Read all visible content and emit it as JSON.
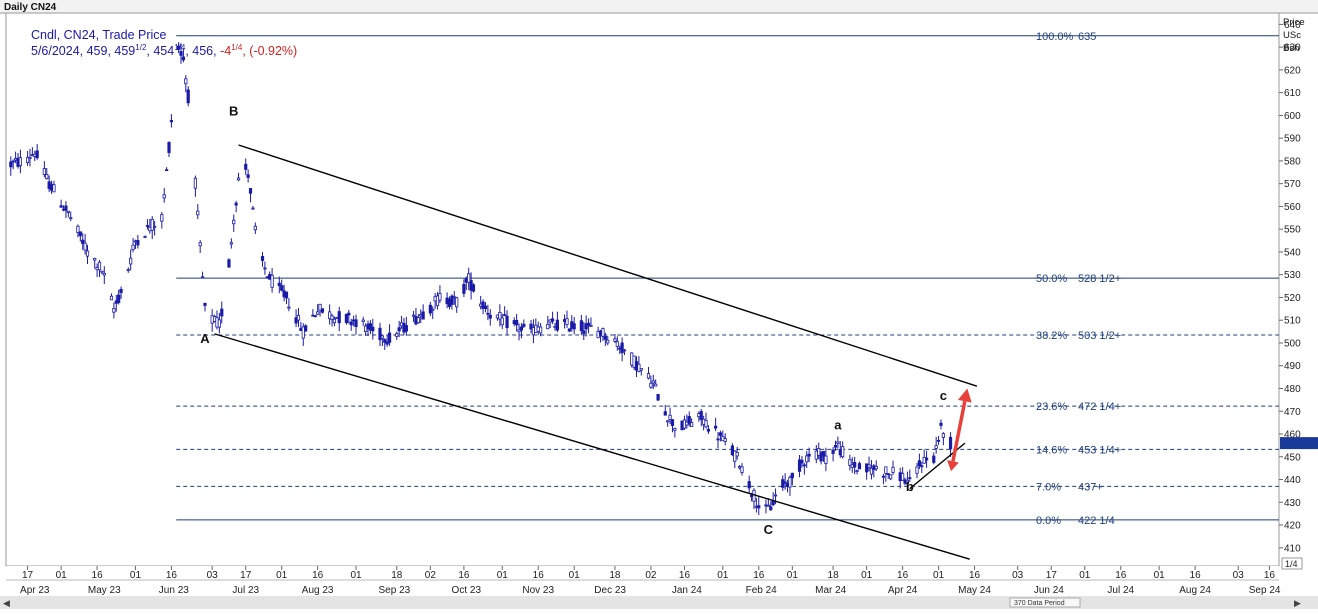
{
  "chart_title": "Daily CN24",
  "legend": {
    "line1": "Cndl, CN24, Trade Price",
    "line2_prefix": "5/6/2024, 459, 459",
    "line2_sup1": "1/2",
    "line2_mid": ", 454",
    "line2_sup2": "1/4",
    "line2_mid2": ", 456, ",
    "change": "-4",
    "change_sup": "1/4",
    "change_sep": ", ",
    "change_pct": "(-0.92%)"
  },
  "axis_header": [
    "Price",
    "USc",
    "Bsh"
  ],
  "current_price_marker": "456",
  "corner_label": "1/4",
  "data_period_label": "370 Data Period",
  "colors": {
    "candle": "#1a1aa8",
    "fib_line": "#1f3f7a",
    "channel": "#000000",
    "arrow": "#e8413a",
    "price_marker": "#1a3a9a",
    "change_text": "#d62020"
  },
  "chart_data": {
    "type": "candlestick",
    "title": "Daily CN24",
    "ylabel": "Price USc Bsh",
    "ylim": [
      402,
      645
    ],
    "x_day_range": [
      "2023-04-08",
      "2024-09-20"
    ],
    "yticks": [
      410,
      420,
      430,
      440,
      450,
      460,
      470,
      480,
      490,
      500,
      510,
      520,
      530,
      540,
      550,
      560,
      570,
      580,
      590,
      600,
      610,
      620,
      630,
      640
    ],
    "xticks_top": [
      {
        "d": "2023-04-17",
        "l": "17"
      },
      {
        "d": "2023-05-01",
        "l": "01"
      },
      {
        "d": "2023-05-16",
        "l": "16"
      },
      {
        "d": "2023-06-01",
        "l": "01"
      },
      {
        "d": "2023-06-16",
        "l": "16"
      },
      {
        "d": "2023-07-03",
        "l": "03"
      },
      {
        "d": "2023-07-17",
        "l": "17"
      },
      {
        "d": "2023-08-01",
        "l": "01"
      },
      {
        "d": "2023-08-16",
        "l": "16"
      },
      {
        "d": "2023-09-01",
        "l": "01"
      },
      {
        "d": "2023-09-18",
        "l": "18"
      },
      {
        "d": "2023-10-02",
        "l": "02"
      },
      {
        "d": "2023-10-16",
        "l": "16"
      },
      {
        "d": "2023-11-01",
        "l": "01"
      },
      {
        "d": "2023-11-16",
        "l": "16"
      },
      {
        "d": "2023-12-01",
        "l": "01"
      },
      {
        "d": "2023-12-18",
        "l": "18"
      },
      {
        "d": "2024-01-02",
        "l": "02"
      },
      {
        "d": "2024-01-16",
        "l": "16"
      },
      {
        "d": "2024-02-01",
        "l": "01"
      },
      {
        "d": "2024-02-16",
        "l": "16"
      },
      {
        "d": "2024-03-01",
        "l": "01"
      },
      {
        "d": "2024-03-18",
        "l": "18"
      },
      {
        "d": "2024-04-01",
        "l": "01"
      },
      {
        "d": "2024-04-16",
        "l": "16"
      },
      {
        "d": "2024-05-01",
        "l": "01"
      },
      {
        "d": "2024-05-16",
        "l": "16"
      },
      {
        "d": "2024-06-03",
        "l": "03"
      },
      {
        "d": "2024-06-17",
        "l": "17"
      },
      {
        "d": "2024-07-01",
        "l": "01"
      },
      {
        "d": "2024-07-16",
        "l": "16"
      },
      {
        "d": "2024-08-01",
        "l": "01"
      },
      {
        "d": "2024-08-16",
        "l": "16"
      },
      {
        "d": "2024-09-03",
        "l": "03"
      },
      {
        "d": "2024-09-16",
        "l": "16"
      }
    ],
    "xticks_months": [
      {
        "d": "2023-04-20",
        "l": "Apr 23"
      },
      {
        "d": "2023-05-19",
        "l": "May 23"
      },
      {
        "d": "2023-06-17",
        "l": "Jun 23"
      },
      {
        "d": "2023-07-17",
        "l": "Jul 23"
      },
      {
        "d": "2023-08-16",
        "l": "Aug 23"
      },
      {
        "d": "2023-09-17",
        "l": "Sep 23"
      },
      {
        "d": "2023-10-17",
        "l": "Oct 23"
      },
      {
        "d": "2023-11-16",
        "l": "Nov 23"
      },
      {
        "d": "2023-12-16",
        "l": "Dec 23"
      },
      {
        "d": "2024-01-17",
        "l": "Jan 24"
      },
      {
        "d": "2024-02-17",
        "l": "Feb 24"
      },
      {
        "d": "2024-03-17",
        "l": "Mar 24"
      },
      {
        "d": "2024-04-16",
        "l": "Apr 24"
      },
      {
        "d": "2024-05-16",
        "l": "May 24"
      },
      {
        "d": "2024-06-16",
        "l": "Jun 24"
      },
      {
        "d": "2024-07-16",
        "l": "Jul 24"
      },
      {
        "d": "2024-08-16",
        "l": "Aug 24"
      },
      {
        "d": "2024-09-14",
        "l": "Sep 24"
      }
    ],
    "fib_levels": [
      {
        "pct": "100.0%",
        "price": 635,
        "label": "635",
        "style": "solid"
      },
      {
        "pct": "50.0%",
        "price": 528.5,
        "label": "528 1/2+",
        "style": "solid"
      },
      {
        "pct": "38.2%",
        "price": 503.5,
        "label": "503 1/2+",
        "style": "dashed"
      },
      {
        "pct": "23.6%",
        "price": 472.25,
        "label": "472 1/4+",
        "style": "dashed"
      },
      {
        "pct": "14.6%",
        "price": 453.25,
        "label": "453 1/4+",
        "style": "dashed"
      },
      {
        "pct": "7.0%",
        "price": 437,
        "label": "437+",
        "style": "dashed"
      },
      {
        "pct": "0.0%",
        "price": 422.25,
        "label": "422 1/4",
        "style": "solid"
      }
    ],
    "fib_start": "2023-06-18",
    "waves": [
      {
        "label": "A",
        "d": "2023-06-30",
        "price": 500
      },
      {
        "label": "B",
        "d": "2023-07-12",
        "price": 600
      },
      {
        "label": "C",
        "d": "2024-02-20",
        "price": 416
      },
      {
        "label": "a",
        "d": "2024-03-20",
        "price": 462
      },
      {
        "label": "b",
        "d": "2024-04-19",
        "price": 435
      },
      {
        "label": "c",
        "d": "2024-05-03",
        "price": 475
      }
    ],
    "channel_lines": [
      {
        "from": {
          "d": "2023-07-14",
          "p": 587
        },
        "to": {
          "d": "2024-05-17",
          "p": 481
        }
      },
      {
        "from": {
          "d": "2023-07-04",
          "p": 504
        },
        "to": {
          "d": "2024-05-14",
          "p": 405
        }
      },
      {
        "from": {
          "d": "2024-04-19",
          "p": 436
        },
        "to": {
          "d": "2024-05-12",
          "p": 456
        }
      }
    ],
    "arrow": {
      "from": {
        "d": "2024-05-07",
        "p": 448
      },
      "to": {
        "d": "2024-05-13",
        "p": 480
      }
    },
    "price_path": [
      [
        "2023-04-08",
        578
      ],
      [
        "2023-04-15",
        580
      ],
      [
        "2023-04-20",
        584
      ],
      [
        "2023-04-25",
        572
      ],
      [
        "2023-05-05",
        555
      ],
      [
        "2023-05-12",
        540
      ],
      [
        "2023-05-18",
        532
      ],
      [
        "2023-05-23",
        515
      ],
      [
        "2023-05-27",
        525
      ],
      [
        "2023-06-01",
        545
      ],
      [
        "2023-06-08",
        552
      ],
      [
        "2023-06-12",
        555
      ],
      [
        "2023-06-14",
        575
      ],
      [
        "2023-06-16",
        598
      ],
      [
        "2023-06-19",
        630
      ],
      [
        "2023-06-21",
        625
      ],
      [
        "2023-06-24",
        600
      ],
      [
        "2023-06-27",
        555
      ],
      [
        "2023-06-30",
        515
      ],
      [
        "2023-07-03",
        510
      ],
      [
        "2023-07-06",
        508
      ],
      [
        "2023-07-09",
        525
      ],
      [
        "2023-07-12",
        555
      ],
      [
        "2023-07-15",
        580
      ],
      [
        "2023-07-18",
        575
      ],
      [
        "2023-07-22",
        540
      ],
      [
        "2023-07-27",
        528
      ],
      [
        "2023-08-03",
        520
      ],
      [
        "2023-08-10",
        505
      ],
      [
        "2023-08-16",
        515
      ],
      [
        "2023-08-22",
        512
      ],
      [
        "2023-09-01",
        510
      ],
      [
        "2023-09-08",
        505
      ],
      [
        "2023-09-15",
        502
      ],
      [
        "2023-09-22",
        508
      ],
      [
        "2023-10-01",
        515
      ],
      [
        "2023-10-06",
        520
      ],
      [
        "2023-10-13",
        518
      ],
      [
        "2023-10-18",
        528
      ],
      [
        "2023-10-23",
        518
      ],
      [
        "2023-10-28",
        512
      ],
      [
        "2023-11-05",
        508
      ],
      [
        "2023-11-12",
        505
      ],
      [
        "2023-11-20",
        508
      ],
      [
        "2023-11-27",
        508
      ],
      [
        "2023-12-05",
        507
      ],
      [
        "2023-12-12",
        505
      ],
      [
        "2023-12-19",
        500
      ],
      [
        "2023-12-26",
        492
      ],
      [
        "2024-01-03",
        482
      ],
      [
        "2024-01-08",
        470
      ],
      [
        "2024-01-13",
        462
      ],
      [
        "2024-01-18",
        465
      ],
      [
        "2024-01-23",
        467
      ],
      [
        "2024-01-28",
        462
      ],
      [
        "2024-02-03",
        455
      ],
      [
        "2024-02-08",
        448
      ],
      [
        "2024-02-13",
        435
      ],
      [
        "2024-02-18",
        425
      ],
      [
        "2024-02-21",
        428
      ],
      [
        "2024-02-25",
        437
      ],
      [
        "2024-03-01",
        440
      ],
      [
        "2024-03-05",
        448
      ],
      [
        "2024-03-10",
        452
      ],
      [
        "2024-03-15",
        450
      ],
      [
        "2024-03-20",
        455
      ],
      [
        "2024-03-25",
        447
      ],
      [
        "2024-03-30",
        444
      ],
      [
        "2024-04-05",
        445
      ],
      [
        "2024-04-10",
        443
      ],
      [
        "2024-04-15",
        442
      ],
      [
        "2024-04-19",
        438
      ],
      [
        "2024-04-24",
        448
      ],
      [
        "2024-04-29",
        450
      ],
      [
        "2024-05-02",
        462
      ],
      [
        "2024-05-06",
        456
      ]
    ]
  }
}
